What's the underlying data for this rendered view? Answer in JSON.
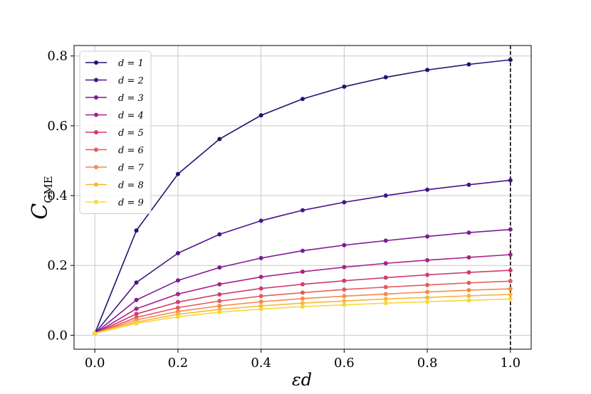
{
  "chart_data": {
    "type": "line",
    "xlabel": "εd",
    "ylabel_main": "C",
    "ylabel_sub": "GME",
    "xlim": [
      -0.05,
      1.05
    ],
    "ylim": [
      -0.04,
      0.83
    ],
    "xticks": [
      0.0,
      0.2,
      0.4,
      0.6,
      0.8,
      1.0
    ],
    "xtick_labels": [
      "0.0",
      "0.2",
      "0.4",
      "0.6",
      "0.8",
      "1.0"
    ],
    "yticks": [
      0.0,
      0.2,
      0.4,
      0.6,
      0.8
    ],
    "ytick_labels": [
      "0.0",
      "0.2",
      "0.4",
      "0.6",
      "0.8"
    ],
    "grid": true,
    "legend_position": "top-left",
    "vline": {
      "x": 1.0,
      "style": "dashed",
      "color": "#000000"
    },
    "x": [
      0.0,
      0.1,
      0.2,
      0.3,
      0.4,
      0.5,
      0.6,
      0.7,
      0.8,
      0.9,
      1.0
    ],
    "series": [
      {
        "name": "d = 1",
        "color": "#1e1470",
        "values": [
          0.005,
          0.3,
          0.462,
          0.562,
          0.63,
          0.677,
          0.712,
          0.739,
          0.76,
          0.776,
          0.789
        ]
      },
      {
        "name": "d = 2",
        "color": "#48148a",
        "values": [
          0.005,
          0.151,
          0.235,
          0.289,
          0.328,
          0.358,
          0.381,
          0.4,
          0.417,
          0.431,
          0.444
        ]
      },
      {
        "name": "d = 3",
        "color": "#7d1b94",
        "values": [
          0.005,
          0.101,
          0.157,
          0.194,
          0.221,
          0.242,
          0.258,
          0.271,
          0.283,
          0.294,
          0.303
        ]
      },
      {
        "name": "d = 4",
        "color": "#a8218c",
        "values": [
          0.005,
          0.076,
          0.118,
          0.146,
          0.167,
          0.182,
          0.195,
          0.206,
          0.215,
          0.223,
          0.231
        ]
      },
      {
        "name": "d = 5",
        "color": "#d13b6f",
        "values": [
          0.005,
          0.061,
          0.095,
          0.117,
          0.134,
          0.146,
          0.156,
          0.165,
          0.173,
          0.18,
          0.186
        ]
      },
      {
        "name": "d = 6",
        "color": "#e85a5b",
        "values": [
          0.005,
          0.051,
          0.079,
          0.098,
          0.112,
          0.122,
          0.131,
          0.138,
          0.144,
          0.15,
          0.155
        ]
      },
      {
        "name": "d = 7",
        "color": "#f58a48",
        "values": [
          0.005,
          0.044,
          0.068,
          0.084,
          0.096,
          0.105,
          0.112,
          0.118,
          0.124,
          0.129,
          0.133
        ]
      },
      {
        "name": "d = 8",
        "color": "#fbb43a",
        "values": [
          0.005,
          0.038,
          0.06,
          0.074,
          0.084,
          0.092,
          0.098,
          0.104,
          0.108,
          0.113,
          0.117
        ]
      },
      {
        "name": "d = 9",
        "color": "#f5d83a",
        "values": [
          0.005,
          0.034,
          0.053,
          0.066,
          0.075,
          0.082,
          0.087,
          0.092,
          0.096,
          0.1,
          0.104
        ]
      }
    ]
  }
}
